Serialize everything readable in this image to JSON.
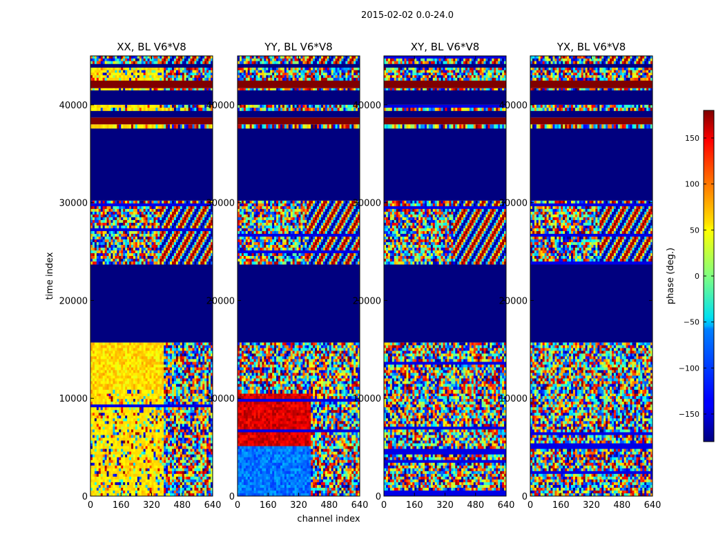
{
  "chart_data": {
    "type": "heatmap",
    "suptitle": "2015-02-02 0.0-24.0",
    "xlabel": "channel index",
    "ylabel": "time index",
    "xlim": [
      0,
      640
    ],
    "ylim": [
      0,
      45000
    ],
    "xticks": [
      "0",
      "160",
      "320",
      "480",
      "640"
    ],
    "yticks": [
      "0",
      "10000",
      "20000",
      "30000",
      "40000"
    ],
    "xtick_values": [
      0,
      160,
      320,
      480,
      640
    ],
    "ytick_values": [
      0,
      10000,
      20000,
      30000,
      40000
    ],
    "colormap": "jet",
    "panels": [
      {
        "title": "XX, BL V6*V8",
        "pol": "XX"
      },
      {
        "title": "YY, BL V6*V8",
        "pol": "YY"
      },
      {
        "title": "XY, BL V6*V8",
        "pol": "XY"
      },
      {
        "title": "YX, BL V6*V8",
        "pol": "YX"
      }
    ],
    "bands": [
      {
        "from": 0,
        "to": 10500,
        "kind": "noise"
      },
      {
        "from": 10500,
        "to": 10900,
        "kind": "noise"
      },
      {
        "from": 10900,
        "to": 15700,
        "kind": "mixed"
      },
      {
        "from": 15700,
        "to": 23700,
        "kind": "flagged"
      },
      {
        "from": 23700,
        "to": 30200,
        "kind": "fringes"
      },
      {
        "from": 30200,
        "to": 37600,
        "kind": "flagged"
      },
      {
        "from": 37600,
        "to": 38000,
        "kind": "noise"
      },
      {
        "from": 38000,
        "to": 38700,
        "kind": "saturated"
      },
      {
        "from": 38700,
        "to": 39400,
        "kind": "flagged"
      },
      {
        "from": 39400,
        "to": 40000,
        "kind": "noise"
      },
      {
        "from": 40000,
        "to": 41500,
        "kind": "flagged"
      },
      {
        "from": 41500,
        "to": 41700,
        "kind": "noise"
      },
      {
        "from": 41700,
        "to": 42500,
        "kind": "saturated"
      },
      {
        "from": 42500,
        "to": 43800,
        "kind": "noise"
      },
      {
        "from": 43800,
        "to": 44200,
        "kind": "flagged"
      },
      {
        "from": 44200,
        "to": 45000,
        "kind": "fringes"
      }
    ],
    "colorbar": {
      "label": "phase (deg.)",
      "range": [
        -180,
        180
      ],
      "ticks": [
        "150",
        "100",
        "50",
        "0",
        "−50",
        "−100",
        "−150"
      ],
      "tick_values": [
        150,
        100,
        50,
        0,
        -50,
        -100,
        -150
      ]
    }
  }
}
